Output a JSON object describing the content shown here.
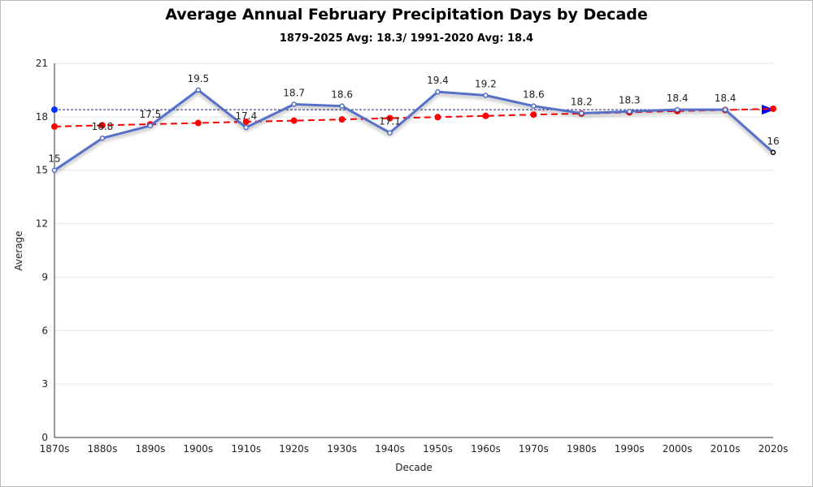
{
  "chart_data": {
    "type": "line",
    "title": "Average Annual February Precipitation Days by Decade",
    "subtitle": "1879-2025 Avg: 18.3/ 1991-2020 Avg: 18.4",
    "x_label": "Decade",
    "y_label": "Average",
    "categories": [
      "1870s",
      "1880s",
      "1890s",
      "1900s",
      "1910s",
      "1920s",
      "1930s",
      "1940s",
      "1950s",
      "1960s",
      "1970s",
      "1980s",
      "1990s",
      "2000s",
      "2010s",
      "2020s"
    ],
    "series": [
      {
        "color": "#5470c6",
        "line_style": "solid",
        "data_labels": true,
        "values": [
          15,
          16.8,
          17.5,
          19.5,
          17.4,
          18.7,
          18.6,
          17.1,
          19.4,
          19.2,
          18.6,
          18.2,
          18.3,
          18.4,
          18.4,
          16
        ]
      },
      {
        "color": "#ff0000",
        "line_style": "dashed",
        "data_labels": false,
        "values": [
          17.45,
          17.52,
          17.58,
          17.65,
          17.72,
          17.78,
          17.85,
          17.92,
          17.98,
          18.05,
          18.12,
          18.18,
          18.25,
          18.32,
          18.38,
          18.45
        ]
      }
    ],
    "reference_line": {
      "value": 18.4,
      "color": "#1a237e"
    },
    "ylim": [
      0,
      21
    ],
    "yticks": [
      0,
      3,
      6,
      9,
      12,
      15,
      18,
      21
    ],
    "grid": true
  }
}
